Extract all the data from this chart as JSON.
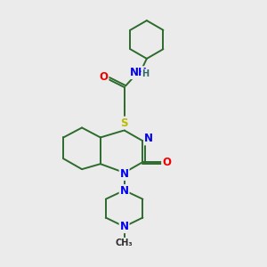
{
  "bg_color": "#ebebeb",
  "bond_color": "#2d6b2d",
  "atom_colors": {
    "N": "#0000ee",
    "O": "#ee0000",
    "S": "#bbbb00",
    "H": "#336666",
    "C": "#2d2d2d"
  },
  "line_width": 1.4,
  "font_size": 8.5
}
